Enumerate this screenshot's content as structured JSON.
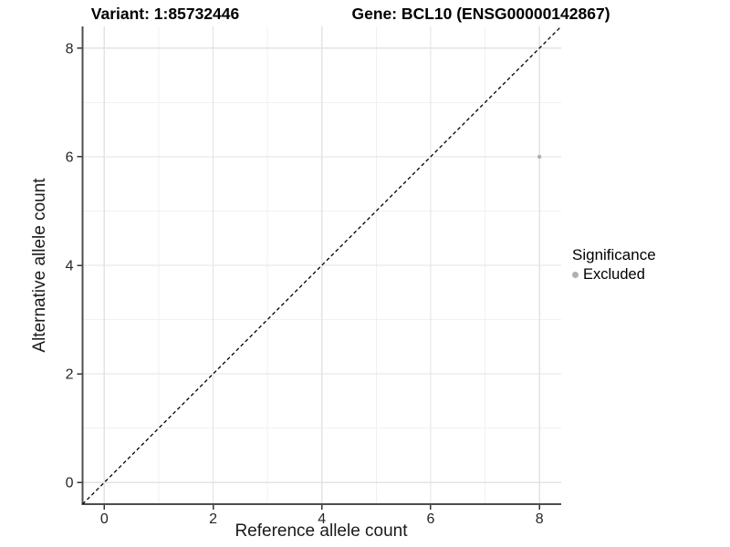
{
  "chart_data": {
    "type": "scatter",
    "title_left": "Variant: 1:85732446",
    "title_right": "Gene: BCL10 (ENSG00000142867)",
    "xlabel": "Reference allele count",
    "ylabel": "Alternative allele count",
    "xlim": [
      -0.4,
      8.4
    ],
    "ylim": [
      -0.4,
      8.4
    ],
    "x_ticks": [
      0,
      2,
      4,
      6,
      8
    ],
    "y_ticks": [
      0,
      2,
      4,
      6,
      8
    ],
    "x_minor_ticks": [
      1,
      3,
      5,
      7
    ],
    "y_minor_ticks": [
      1,
      3,
      5,
      7
    ],
    "grid": "major+minor",
    "legend_position": "right",
    "reference_line": {
      "kind": "y=x identity",
      "style": "dashed",
      "color": "#000000"
    },
    "series": [
      {
        "name": "Excluded",
        "color": "#b0b0b0",
        "marker": "circle",
        "marker_size": 2.2,
        "points": [
          [
            8,
            6
          ]
        ]
      }
    ],
    "legend": {
      "title": "Significance",
      "items": [
        {
          "label": "Excluded",
          "swatch_color": "#b0b0b0"
        }
      ]
    },
    "style": {
      "background": "#ffffff",
      "axis_line_color": "#4d4d4d",
      "tick_color": "#333333",
      "tick_label_color": "#262626",
      "grid_major_color": "#e3e3e3",
      "grid_minor_color": "#f1f1f1"
    }
  }
}
